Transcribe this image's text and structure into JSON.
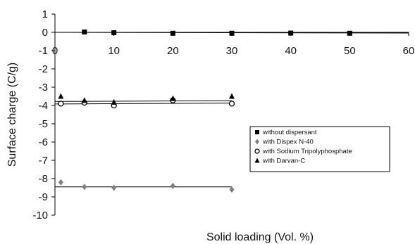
{
  "chart_data": {
    "type": "scatter",
    "xlabel": "Solid loading (Vol. %)",
    "ylabel": "Surface charge (C/g)",
    "xlim": [
      0,
      60
    ],
    "ylim": [
      -10,
      1
    ],
    "xticks": [
      0,
      10,
      20,
      30,
      40,
      50,
      60
    ],
    "yticks": [
      1,
      0,
      -1,
      -2,
      -3,
      -4,
      -5,
      -6,
      -7,
      -8,
      -9,
      -10
    ],
    "grid": false,
    "legend_position": "right",
    "series": [
      {
        "name": "without dispersant",
        "marker": "square",
        "color": "#000000",
        "points": [
          [
            5,
            0.02
          ],
          [
            10,
            -0.02
          ],
          [
            20,
            -0.05
          ],
          [
            30,
            -0.05
          ],
          [
            40,
            -0.04
          ],
          [
            50,
            -0.05
          ]
        ],
        "fit": {
          "x": [
            0,
            60
          ],
          "y": [
            0.0,
            -0.04
          ]
        }
      },
      {
        "name": "with Dispex N-40",
        "marker": "diamond",
        "color": "#808080",
        "points": [
          [
            1,
            -8.2
          ],
          [
            5,
            -8.45
          ],
          [
            10,
            -8.5
          ],
          [
            20,
            -8.4
          ],
          [
            30,
            -8.6
          ]
        ],
        "fit": {
          "x": [
            0,
            30
          ],
          "y": [
            -8.45,
            -8.45
          ]
        }
      },
      {
        "name": "with Sodium Tripolyphosphate",
        "marker": "circle",
        "color": "#000000",
        "points": [
          [
            1,
            -3.9
          ],
          [
            5,
            -3.85
          ],
          [
            10,
            -4.0
          ],
          [
            20,
            -3.72
          ],
          [
            30,
            -3.9
          ]
        ],
        "fit": {
          "x": [
            0,
            30
          ],
          "y": [
            -3.92,
            -3.87
          ]
        }
      },
      {
        "name": "with Darvan-C",
        "marker": "triangle",
        "color": "#000000",
        "points": [
          [
            1,
            -3.5
          ],
          [
            5,
            -3.72
          ],
          [
            10,
            -3.82
          ],
          [
            20,
            -3.62
          ],
          [
            30,
            -3.5
          ]
        ],
        "fit": {
          "x": [
            0,
            30
          ],
          "y": [
            -3.78,
            -3.74
          ]
        }
      }
    ]
  }
}
